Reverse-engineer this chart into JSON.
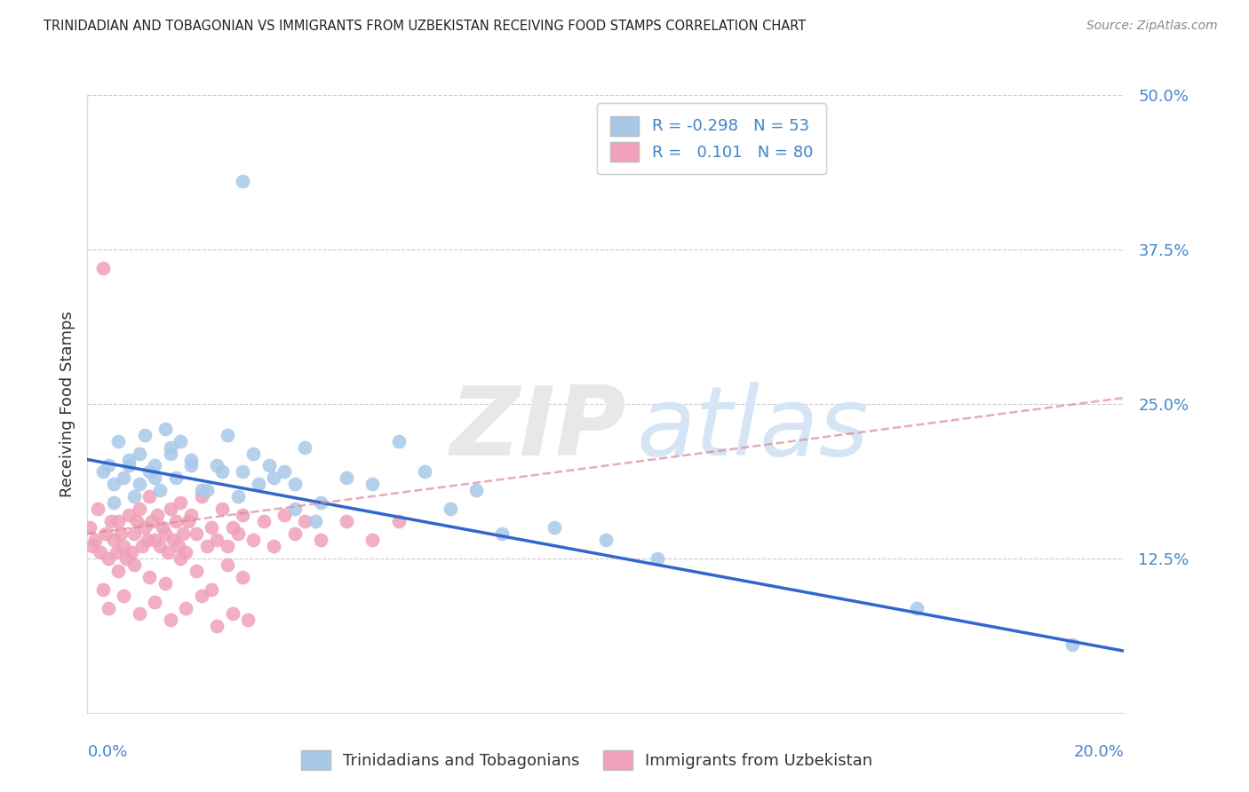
{
  "title": "TRINIDADIAN AND TOBAGONIAN VS IMMIGRANTS FROM UZBEKISTAN RECEIVING FOOD STAMPS CORRELATION CHART",
  "source": "Source: ZipAtlas.com",
  "ylabel": "Receiving Food Stamps",
  "xmin": 0.0,
  "xmax": 20.0,
  "ymin": 0.0,
  "ymax": 50.0,
  "blue_R": -0.298,
  "blue_N": 53,
  "pink_R": 0.101,
  "pink_N": 80,
  "blue_color": "#a8c8e8",
  "pink_color": "#f0a0b8",
  "blue_line_color": "#3366cc",
  "pink_line_color": "#dd8899",
  "legend_blue_label": "Trinidadians and Tobagonians",
  "legend_pink_label": "Immigrants from Uzbekistan",
  "blue_trend_x0": 0.0,
  "blue_trend_y0": 20.5,
  "blue_trend_x1": 20.0,
  "blue_trend_y1": 5.0,
  "pink_trend_x0": 0.0,
  "pink_trend_y0": 14.5,
  "pink_trend_x1": 20.0,
  "pink_trend_y1": 25.5,
  "blue_x": [
    0.4,
    0.5,
    0.6,
    0.7,
    0.8,
    0.9,
    1.0,
    1.1,
    1.2,
    1.3,
    1.4,
    1.5,
    1.6,
    1.7,
    1.8,
    2.0,
    2.2,
    2.5,
    2.7,
    3.0,
    3.2,
    3.5,
    3.8,
    4.0,
    4.2,
    4.5,
    5.0,
    5.5,
    6.0,
    6.5,
    7.0,
    7.5,
    8.0,
    9.0,
    10.0,
    11.0,
    3.0,
    0.3,
    0.5,
    0.8,
    1.0,
    1.3,
    1.6,
    2.0,
    2.3,
    2.6,
    2.9,
    3.3,
    3.6,
    4.0,
    4.4,
    16.0,
    19.0
  ],
  "blue_y": [
    20.0,
    18.5,
    22.0,
    19.0,
    20.5,
    17.5,
    21.0,
    22.5,
    19.5,
    20.0,
    18.0,
    23.0,
    21.5,
    19.0,
    22.0,
    20.5,
    18.0,
    20.0,
    22.5,
    19.5,
    21.0,
    20.0,
    19.5,
    18.5,
    21.5,
    17.0,
    19.0,
    18.5,
    22.0,
    19.5,
    16.5,
    18.0,
    14.5,
    15.0,
    14.0,
    12.5,
    43.0,
    19.5,
    17.0,
    20.0,
    18.5,
    19.0,
    21.0,
    20.0,
    18.0,
    19.5,
    17.5,
    18.5,
    19.0,
    16.5,
    15.5,
    8.5,
    5.5
  ],
  "pink_x": [
    0.05,
    0.1,
    0.15,
    0.2,
    0.25,
    0.3,
    0.35,
    0.4,
    0.45,
    0.5,
    0.55,
    0.6,
    0.65,
    0.7,
    0.75,
    0.8,
    0.85,
    0.9,
    0.95,
    1.0,
    1.05,
    1.1,
    1.15,
    1.2,
    1.25,
    1.3,
    1.35,
    1.4,
    1.45,
    1.5,
    1.55,
    1.6,
    1.65,
    1.7,
    1.75,
    1.8,
    1.85,
    1.9,
    1.95,
    2.0,
    2.1,
    2.2,
    2.3,
    2.4,
    2.5,
    2.6,
    2.7,
    2.8,
    2.9,
    3.0,
    3.2,
    3.4,
    3.6,
    3.8,
    4.0,
    4.2,
    4.5,
    5.0,
    5.5,
    6.0,
    0.3,
    0.6,
    0.9,
    1.2,
    1.5,
    1.8,
    2.1,
    2.4,
    2.7,
    3.0,
    0.4,
    0.7,
    1.0,
    1.3,
    1.6,
    1.9,
    2.2,
    2.5,
    2.8,
    3.1
  ],
  "pink_y": [
    15.0,
    13.5,
    14.0,
    16.5,
    13.0,
    36.0,
    14.5,
    12.5,
    15.5,
    14.0,
    13.0,
    15.5,
    14.5,
    13.5,
    12.5,
    16.0,
    13.0,
    14.5,
    15.5,
    16.5,
    13.5,
    15.0,
    14.0,
    17.5,
    15.5,
    14.0,
    16.0,
    13.5,
    15.0,
    14.5,
    13.0,
    16.5,
    14.0,
    15.5,
    13.5,
    17.0,
    14.5,
    13.0,
    15.5,
    16.0,
    14.5,
    17.5,
    13.5,
    15.0,
    14.0,
    16.5,
    13.5,
    15.0,
    14.5,
    16.0,
    14.0,
    15.5,
    13.5,
    16.0,
    14.5,
    15.5,
    14.0,
    15.5,
    14.0,
    15.5,
    10.0,
    11.5,
    12.0,
    11.0,
    10.5,
    12.5,
    11.5,
    10.0,
    12.0,
    11.0,
    8.5,
    9.5,
    8.0,
    9.0,
    7.5,
    8.5,
    9.5,
    7.0,
    8.0,
    7.5
  ]
}
